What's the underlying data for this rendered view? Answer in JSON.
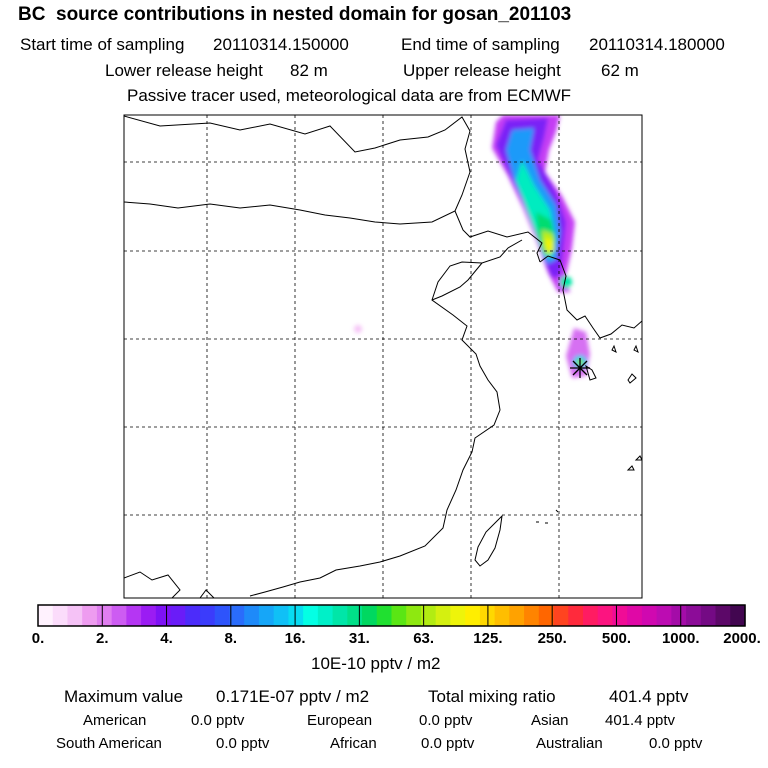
{
  "header": {
    "title": "BC  source contributions in nested domain for gosan_201103",
    "start_label": "Start time of sampling",
    "start_value": "20110314.150000",
    "end_label": "End time of sampling",
    "end_value": "20110314.180000",
    "lower_label": "Lower release height",
    "lower_value": "82 m",
    "upper_label": "Upper release height",
    "upper_value": "62 m",
    "note": "Passive tracer used, meteorological data are from ECMWF"
  },
  "chart_data": {
    "type": "heatmap",
    "title": "BC  source contributions in nested domain for gosan_201103",
    "colorbar": {
      "labels": [
        "0.",
        "2.",
        "4.",
        "8.",
        "16.",
        "31.",
        "63.",
        "125.",
        "250.",
        "500.",
        "1000.",
        "2000."
      ],
      "unit": "10E-10 pptv / m2",
      "colors": [
        "#fff2fe",
        "#fbdcfb",
        "#f5c2f6",
        "#ee9cf0",
        "#e07ef0",
        "#cd5cf2",
        "#b536f3",
        "#9b1cf3",
        "#7e12f5",
        "#6a1cf8",
        "#4c2cfa",
        "#3b3cfb",
        "#2e54fb",
        "#2a6cfb",
        "#1e8af9",
        "#16a6f8",
        "#10c0f6",
        "#08dcf2",
        "#04ffe4",
        "#00f0c8",
        "#00e6a8",
        "#00e088",
        "#00d860",
        "#20e030",
        "#5ae614",
        "#8ee810",
        "#b2ec12",
        "#d4f010",
        "#eef40a",
        "#ffee00",
        "#ffd800",
        "#ffbe00",
        "#ffa200",
        "#ff8400",
        "#ff6600",
        "#ff4420",
        "#ff2a3c",
        "#ff1c62",
        "#fc1480",
        "#f00c96",
        "#e008a6",
        "#d008b0",
        "#bc0cb2",
        "#a40ca8",
        "#8c0c98",
        "#740a84",
        "#5c0868",
        "#420650"
      ]
    },
    "maximum_value": "0.171E-07 pptv / m2",
    "total_mixing_ratio": "401.4 pptv",
    "receptor": "gosan"
  },
  "footer": {
    "max_label": "Maximum value",
    "max_value": "0.171E-07 pptv / m2",
    "total_label": "Total mixing ratio",
    "total_value": "401.4 pptv",
    "regions": [
      {
        "name": "American",
        "value": "0.0 pptv"
      },
      {
        "name": "European",
        "value": "0.0 pptv"
      },
      {
        "name": "Asian",
        "value": "401.4 pptv"
      },
      {
        "name": "South American",
        "value": "0.0 pptv"
      },
      {
        "name": "African",
        "value": "0.0 pptv"
      },
      {
        "name": "Australian",
        "value": "0.0 pptv"
      }
    ]
  }
}
